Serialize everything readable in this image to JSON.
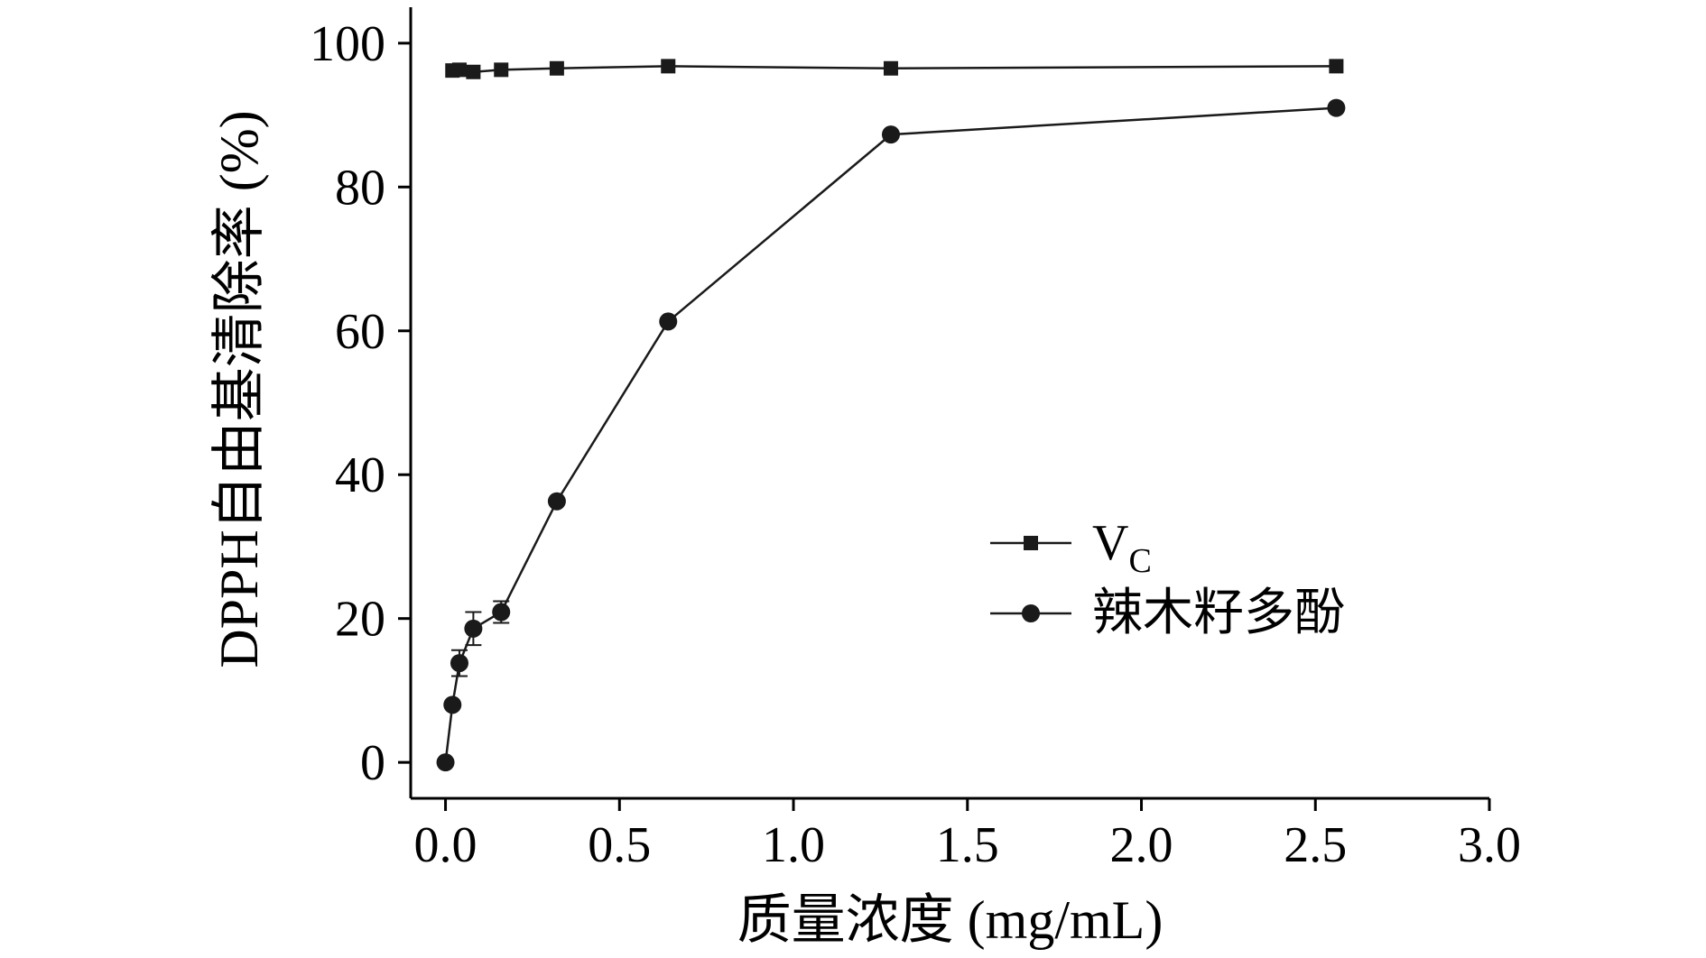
{
  "chart_data": {
    "type": "line",
    "title": "",
    "xlabel": "质量浓度 (mg/mL)",
    "ylabel": "DPPH自由基清除率 (%)",
    "xlim": [
      -0.1,
      3.0
    ],
    "ylim": [
      -5,
      105
    ],
    "xticks": [
      0.0,
      0.5,
      1.0,
      1.5,
      2.0,
      2.5,
      3.0
    ],
    "xtick_labels": [
      "0.0",
      "0.5",
      "1.0",
      "1.5",
      "2.0",
      "2.5",
      "3.0"
    ],
    "yticks": [
      0,
      20,
      40,
      60,
      80,
      100
    ],
    "ytick_labels": [
      "0",
      "20",
      "40",
      "60",
      "80",
      "100"
    ],
    "grid": false,
    "legend_position": "center-right",
    "series": [
      {
        "name": "V",
        "name_subscript": "C",
        "marker": "square",
        "color": "#1a1a1a",
        "x": [
          0.02,
          0.04,
          0.08,
          0.16,
          0.32,
          0.64,
          1.28,
          2.56
        ],
        "y": [
          96.2,
          96.3,
          96.0,
          96.3,
          96.5,
          96.8,
          96.5,
          96.8
        ],
        "err": [
          0,
          0,
          0,
          0,
          0,
          0,
          0,
          0
        ]
      },
      {
        "name": "辣木籽多酚",
        "marker": "circle",
        "color": "#1a1a1a",
        "x": [
          0.0,
          0.02,
          0.04,
          0.08,
          0.16,
          0.32,
          0.64,
          1.28,
          2.56
        ],
        "y": [
          0.0,
          8.0,
          13.8,
          18.6,
          20.9,
          36.3,
          61.3,
          87.3,
          91.0
        ],
        "err": [
          0,
          0,
          1.8,
          2.3,
          1.5,
          0,
          0,
          0,
          0
        ]
      }
    ]
  }
}
